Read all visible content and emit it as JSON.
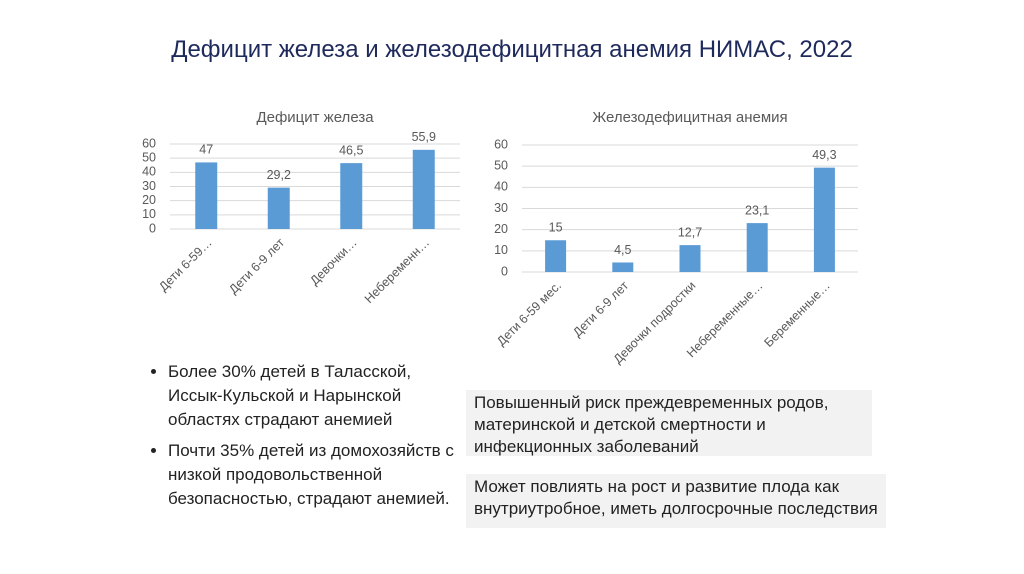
{
  "title": "Дефицит железа и железодефицитная анемия НИМАС, 2022",
  "chart_data": [
    {
      "type": "bar",
      "title": "Дефицит железа",
      "categories": [
        "Дети 6-59…",
        "Дети 6-9 лет",
        "Девочки…",
        "Небеременн…"
      ],
      "values": [
        47,
        29.2,
        46.5,
        55.9
      ],
      "value_labels": [
        "47",
        "29,2",
        "46,5",
        "55,9"
      ],
      "color": "#5b9bd5",
      "ylim": [
        0,
        60
      ],
      "yticks": [
        0,
        10,
        20,
        30,
        40,
        50,
        60
      ],
      "grid": true
    },
    {
      "type": "bar",
      "title": "Железодефицитная анемия",
      "categories": [
        "Дети 6-59 мес.",
        "Дети 6-9 лет",
        "Девочки подростки",
        "Небеременные…",
        "Беременные…"
      ],
      "values": [
        15,
        4.5,
        12.7,
        23.1,
        49.3
      ],
      "value_labels": [
        "15",
        "4,5",
        "12,7",
        "23,1",
        "49,3"
      ],
      "color": "#5b9bd5",
      "ylim": [
        0,
        60
      ],
      "yticks": [
        0,
        10,
        20,
        30,
        40,
        50,
        60
      ],
      "grid": true
    }
  ],
  "bullets": [
    "Более 30% детей в Таласской, Иссык-Кульской и Нарынской областях страдают анемией",
    "Почти 35% детей из домохозяйств с низкой продовольственной безопасностью, страдают анемией."
  ],
  "notes": [
    "Повышенный риск преждевременных родов, материнской и детской смертности и инфекционных заболеваний",
    "Может повлиять на рост и развитие плода как внутриутробное, иметь долгосрочные последствия"
  ]
}
